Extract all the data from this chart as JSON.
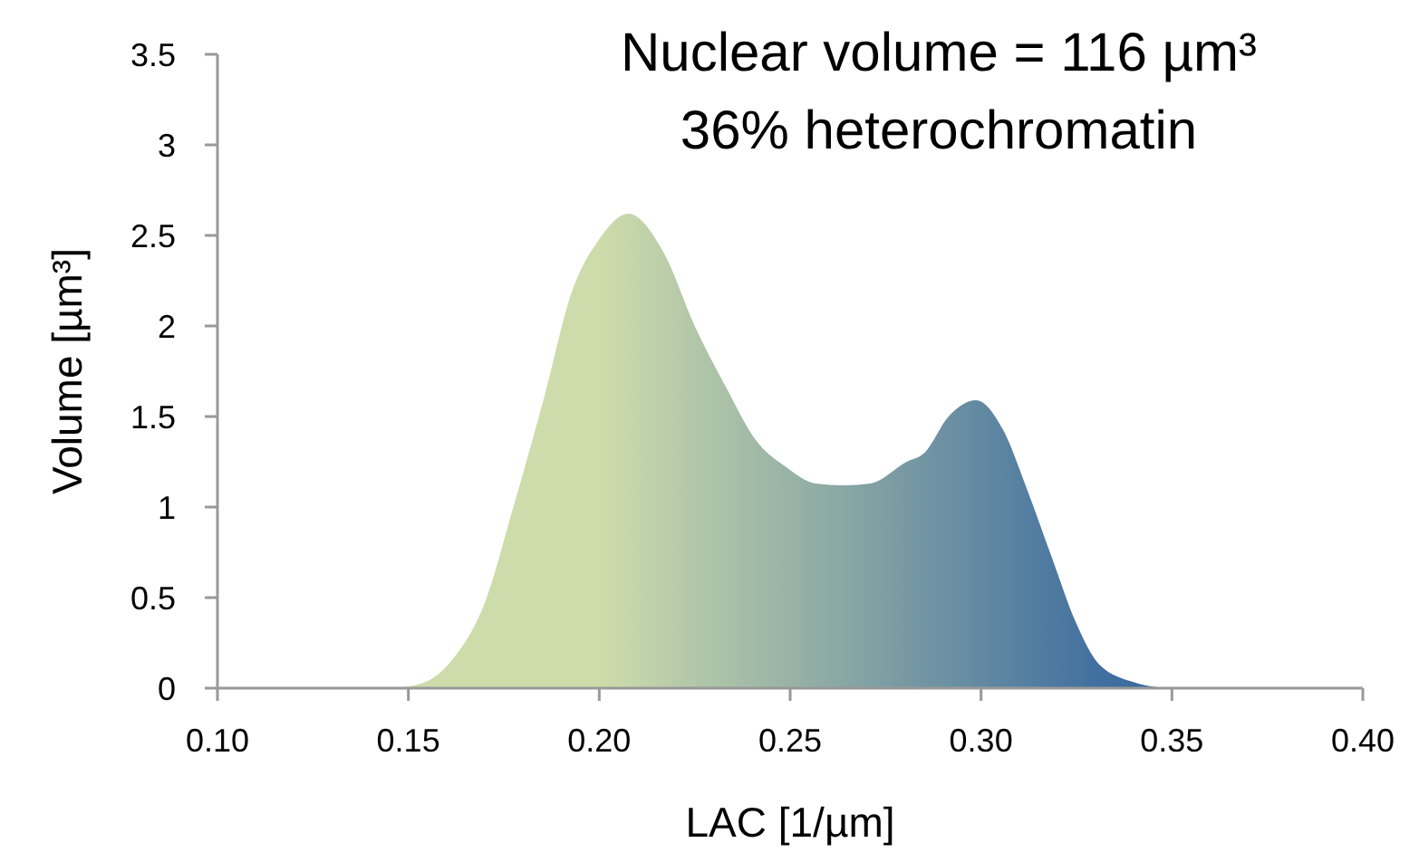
{
  "chart_data": {
    "type": "area",
    "title": "Nuclear volume = 116 µm³",
    "subtitle": "36% heterochromatin",
    "xlabel": "LAC [1/µm]",
    "ylabel": "Volume [µm³]",
    "x": [
      0.146,
      0.154,
      0.162,
      0.17,
      0.1775,
      0.1855,
      0.193,
      0.1997,
      0.2076,
      0.217,
      0.225,
      0.233,
      0.241,
      0.249,
      0.2567,
      0.264,
      0.271,
      0.2805,
      0.2852,
      0.2915,
      0.2987,
      0.3057,
      0.312,
      0.3184,
      0.3247,
      0.331,
      0.3405,
      0.348
    ],
    "series": [
      {
        "colors": [
          "#cddcaa",
          "#cddcaa",
          "#cddcaa",
          "#cddcaa",
          "#cddcaa",
          "#cddcaa",
          "#cddcaa",
          "#cddcaa",
          "#c5d6a9",
          "#bbcea9",
          "#b2c7a8",
          "#aac1a7",
          "#a1baa7",
          "#99b3a6",
          "#91ada5",
          "#89a7a5",
          "#81a1a4",
          "#7799a3",
          "#7295a3",
          "#6b90a3",
          "#648aa2",
          "#5c84a1",
          "#557fa1",
          "#4f7aa0",
          "#4875a0",
          "#416f9f",
          "#3d6c9f",
          "#3d6c9f"
        ],
        "values": [
          0,
          0.03,
          0.17,
          0.47,
          1.0,
          1.6,
          2.2,
          2.47,
          2.62,
          2.4,
          2.0,
          1.67,
          1.37,
          1.22,
          1.13,
          1.12,
          1.13,
          1.25,
          1.3,
          1.5,
          1.59,
          1.43,
          1.1,
          0.73,
          0.37,
          0.13,
          0.03,
          0
        ]
      }
    ],
    "xlim": [
      0.1,
      0.4
    ],
    "xticks": [
      {
        "value": 0.1,
        "label": "0.10"
      },
      0.15,
      {
        "value": 0.2,
        "label": "0.20"
      },
      0.25,
      {
        "value": 0.3,
        "label": "0.30"
      },
      0.35,
      {
        "value": 0.4,
        "label": "0.40"
      }
    ],
    "ylim": [
      0,
      3.5
    ],
    "yticks": [
      0,
      0.5,
      1,
      1.5,
      2,
      2.5,
      3,
      3.5
    ],
    "grid": false
  }
}
